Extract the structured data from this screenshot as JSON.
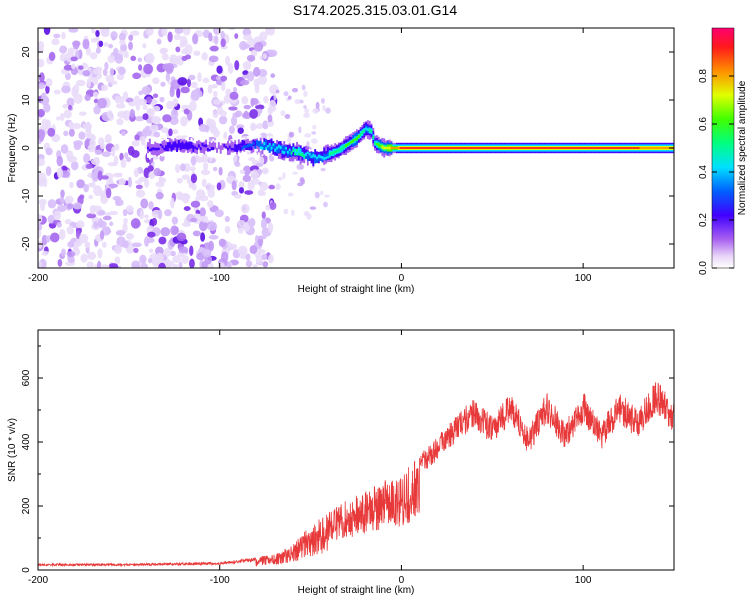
{
  "title": "S174.2025.315.03.01.G14",
  "chart_data": [
    {
      "type": "heatmap",
      "xlabel": "Height of straight line (km)",
      "ylabel": "Frequency (Hz)",
      "xlim": [
        -200,
        150
      ],
      "ylim": [
        -25,
        25
      ],
      "xticks": [
        -200,
        -100,
        0,
        100
      ],
      "yticks": [
        -20,
        -10,
        0,
        10,
        20
      ],
      "colorbar": {
        "label": "Normalized spectral amplitude",
        "range": [
          0,
          1
        ],
        "ticks": [
          0.0,
          0.2,
          0.4,
          0.6,
          0.8
        ],
        "tick_labels": [
          "0.0",
          "0.2",
          "0.4",
          "0.6",
          "0.8"
        ]
      },
      "ridge": {
        "x": [
          -140,
          -120,
          -100,
          -85,
          -75,
          -65,
          -55,
          -50,
          -45,
          -35,
          -25,
          -20,
          -17,
          -15,
          -10,
          -5,
          0,
          50,
          100,
          150
        ],
        "freq": [
          0,
          0.5,
          0,
          0.5,
          0.5,
          -0.5,
          -1,
          -2,
          -2,
          -0.5,
          2,
          4,
          3.5,
          1,
          0,
          0,
          0,
          0,
          0,
          0
        ],
        "amplitude": [
          0.25,
          0.3,
          0.2,
          0.35,
          0.45,
          0.5,
          0.55,
          0.45,
          0.45,
          0.6,
          0.65,
          0.5,
          0.55,
          0.6,
          0.75,
          0.85,
          0.95,
          0.95,
          0.95,
          0.9
        ]
      },
      "noise_region_x": [
        -200,
        -70
      ]
    },
    {
      "type": "line",
      "xlabel": "Height of straight line (km)",
      "ylabel": "SNR (10 * v/v)",
      "xlim": [
        -200,
        150
      ],
      "ylim": [
        0,
        750
      ],
      "xticks": [
        -200,
        -100,
        0,
        100
      ],
      "yticks": [
        0,
        200,
        400,
        600
      ],
      "series": [
        {
          "name": "SNR",
          "color": "#e8393a",
          "envelope_x": [
            -200,
            -150,
            -100,
            -80,
            -70,
            -60,
            -50,
            -40,
            -30,
            -20,
            -10,
            0,
            10,
            20,
            30,
            40,
            50,
            60,
            70,
            80,
            90,
            100,
            110,
            120,
            130,
            140,
            150
          ],
          "envelope_y": [
            20,
            20,
            25,
            40,
            50,
            80,
            140,
            180,
            220,
            250,
            280,
            300,
            360,
            420,
            480,
            540,
            480,
            560,
            440,
            560,
            460,
            560,
            460,
            560,
            500,
            600,
            520
          ]
        }
      ]
    }
  ]
}
